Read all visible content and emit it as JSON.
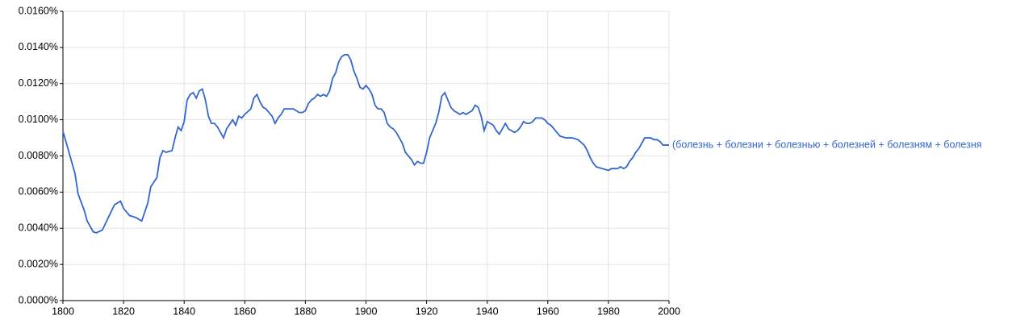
{
  "chart_data": {
    "type": "line",
    "x": [
      1800,
      1802,
      1804,
      1805,
      1807,
      1808,
      1810,
      1811,
      1813,
      1815,
      1817,
      1819,
      1820,
      1822,
      1824,
      1826,
      1828,
      1829,
      1831,
      1832,
      1833,
      1834,
      1836,
      1837,
      1838,
      1839,
      1840,
      1841,
      1842,
      1843,
      1844,
      1845,
      1846,
      1847,
      1848,
      1849,
      1850,
      1851,
      1852,
      1853,
      1854,
      1856,
      1857,
      1858,
      1859,
      1860,
      1862,
      1863,
      1864,
      1865,
      1866,
      1867,
      1868,
      1869,
      1870,
      1871,
      1872,
      1873,
      1874,
      1876,
      1877,
      1878,
      1879,
      1880,
      1881,
      1882,
      1883,
      1884,
      1885,
      1886,
      1887,
      1888,
      1889,
      1890,
      1891,
      1892,
      1893,
      1894,
      1895,
      1896,
      1897,
      1898,
      1899,
      1900,
      1901,
      1902,
      1903,
      1904,
      1905,
      1906,
      1907,
      1908,
      1909,
      1910,
      1911,
      1912,
      1913,
      1915,
      1916,
      1917,
      1918,
      1919,
      1920,
      1921,
      1923,
      1924,
      1925,
      1926,
      1927,
      1928,
      1929,
      1930,
      1931,
      1932,
      1933,
      1934,
      1935,
      1936,
      1937,
      1938,
      1939,
      1940,
      1941,
      1942,
      1943,
      1944,
      1945,
      1946,
      1947,
      1948,
      1949,
      1950,
      1951,
      1952,
      1953,
      1954,
      1955,
      1956,
      1958,
      1959,
      1960,
      1961,
      1962,
      1963,
      1964,
      1966,
      1968,
      1970,
      1972,
      1973,
      1974,
      1975,
      1976,
      1978,
      1980,
      1981,
      1983,
      1984,
      1985,
      1986,
      1987,
      1988,
      1989,
      1990,
      1991,
      1992,
      1994,
      1995,
      1996,
      1997,
      1998,
      2000
    ],
    "series": [
      {
        "name": "(болезнь + болезни + болезнью + болезней + болезням + болезня",
        "color": "#3366cc",
        "values": [
          0.00936,
          0.0082,
          0.007,
          0.0059,
          0.005,
          0.0044,
          0.0038,
          0.00375,
          0.0039,
          0.0046,
          0.0053,
          0.0055,
          0.0051,
          0.0047,
          0.0046,
          0.0044,
          0.0054,
          0.0063,
          0.0068,
          0.0079,
          0.0083,
          0.0082,
          0.0083,
          0.009,
          0.0096,
          0.0094,
          0.0099,
          0.0111,
          0.0114,
          0.0115,
          0.0112,
          0.0116,
          0.0117,
          0.0111,
          0.0102,
          0.0098,
          0.0098,
          0.0096,
          0.0093,
          0.009,
          0.0095,
          0.01,
          0.0097,
          0.0102,
          0.0101,
          0.0103,
          0.0106,
          0.0112,
          0.0114,
          0.011,
          0.0107,
          0.0106,
          0.0104,
          0.0102,
          0.0098,
          0.0101,
          0.0103,
          0.0106,
          0.0106,
          0.0106,
          0.0105,
          0.0104,
          0.0104,
          0.0105,
          0.0109,
          0.0111,
          0.0112,
          0.0114,
          0.0113,
          0.0114,
          0.0113,
          0.0116,
          0.0123,
          0.0126,
          0.0132,
          0.0135,
          0.0136,
          0.0136,
          0.0133,
          0.0127,
          0.0123,
          0.0118,
          0.0117,
          0.0119,
          0.0117,
          0.0114,
          0.0108,
          0.0106,
          0.0106,
          0.0104,
          0.0098,
          0.0096,
          0.0095,
          0.0093,
          0.009,
          0.0087,
          0.0082,
          0.0078,
          0.0075,
          0.0077,
          0.0076,
          0.0076,
          0.0082,
          0.009,
          0.0098,
          0.0104,
          0.0113,
          0.0115,
          0.0111,
          0.0107,
          0.0105,
          0.0104,
          0.0103,
          0.0104,
          0.0103,
          0.0104,
          0.0105,
          0.0108,
          0.0107,
          0.0102,
          0.0094,
          0.0099,
          0.0098,
          0.0097,
          0.0094,
          0.0092,
          0.0095,
          0.0098,
          0.0095,
          0.0094,
          0.0093,
          0.0094,
          0.0096,
          0.0099,
          0.0098,
          0.0098,
          0.0099,
          0.0101,
          0.0101,
          0.01,
          0.0098,
          0.0097,
          0.0095,
          0.0093,
          0.0091,
          0.009,
          0.009,
          0.0089,
          0.0086,
          0.0083,
          0.0079,
          0.0076,
          0.0074,
          0.0073,
          0.0072,
          0.0073,
          0.0073,
          0.0074,
          0.0073,
          0.0074,
          0.0077,
          0.0079,
          0.0082,
          0.0084,
          0.0087,
          0.009,
          0.009,
          0.0089,
          0.0089,
          0.0088,
          0.0086,
          0.0086
        ]
      }
    ],
    "xlim": [
      1800,
      2000
    ],
    "xticks": [
      1800,
      1820,
      1840,
      1860,
      1880,
      1900,
      1920,
      1940,
      1960,
      1980,
      2000
    ],
    "ylim": [
      0,
      0.016
    ],
    "yticks": [
      {
        "value": 0,
        "label": "0.0000%"
      },
      {
        "value": 0.002,
        "label": "0.0020%"
      },
      {
        "value": 0.004,
        "label": "0.0040%"
      },
      {
        "value": 0.006,
        "label": "0.0060%"
      },
      {
        "value": 0.008,
        "label": "0.0080%"
      },
      {
        "value": 0.01,
        "label": "0.0100%"
      },
      {
        "value": 0.012,
        "label": "0.0120%"
      },
      {
        "value": 0.014,
        "label": "0.0140%"
      },
      {
        "value": 0.016,
        "label": "0.0160%"
      }
    ],
    "grid": true
  }
}
